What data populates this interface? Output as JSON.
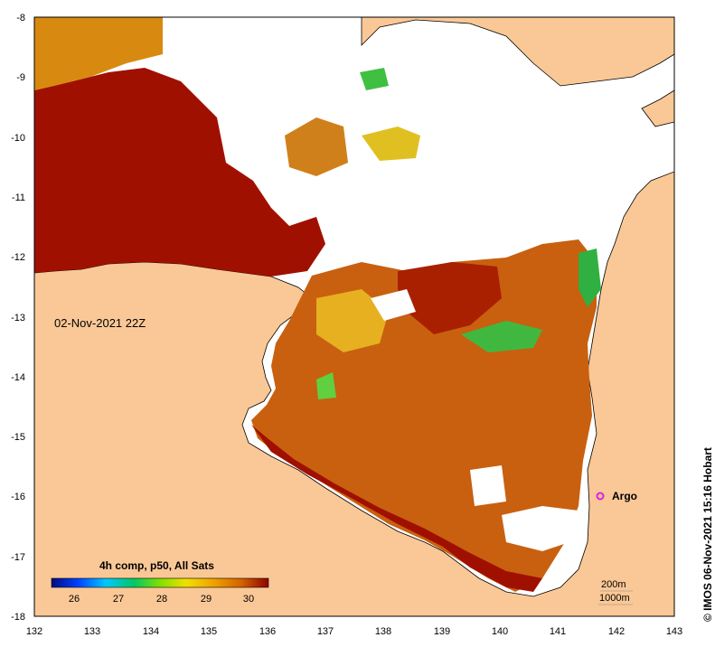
{
  "map": {
    "timestamp": "02-Nov-2021 22Z",
    "lon_ticks": [
      "132",
      "133",
      "134",
      "135",
      "136",
      "137",
      "138",
      "139",
      "140",
      "141",
      "142",
      "143"
    ],
    "lat_ticks": [
      "-8",
      "-9",
      "-10",
      "-11",
      "-12",
      "-13",
      "-14",
      "-15",
      "-16",
      "-17",
      "-18"
    ],
    "colorbar": {
      "title": "4h comp, p50, All Sats",
      "ticks": [
        "26",
        "27",
        "28",
        "29",
        "30"
      ]
    },
    "marker": {
      "label": "Argo",
      "lon": 141.7,
      "lat": -16.0
    },
    "contours": {
      "line1": "200m",
      "line2": "1000m"
    },
    "credit": "© IMOS 06-Nov-2021 15:16 Hobart"
  }
}
